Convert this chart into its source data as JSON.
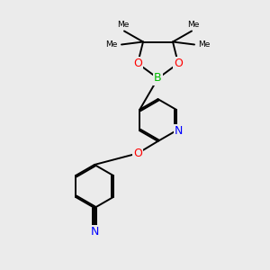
{
  "background_color": "#ebebeb",
  "atom_colors": {
    "C": "#000000",
    "N": "#0000ff",
    "O": "#ff0000",
    "B": "#00bb00"
  },
  "bond_color": "#000000",
  "bond_lw": 1.4,
  "dbo": 0.055,
  "figsize": [
    3.0,
    3.0
  ],
  "dpi": 100,
  "xlim": [
    0,
    10
  ],
  "ylim": [
    0,
    10
  ],
  "font_size": 8.5
}
